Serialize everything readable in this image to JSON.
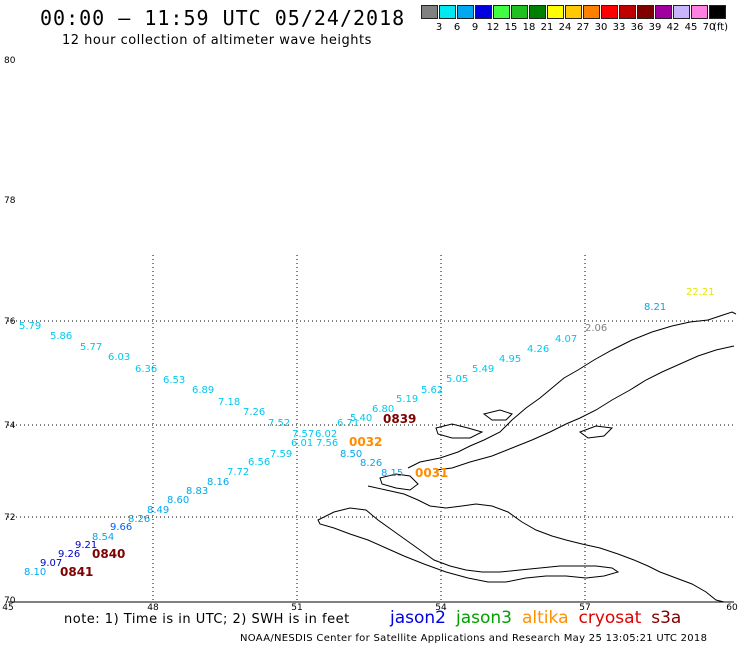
{
  "header": {
    "title": "00:00 – 11:59 UTC 05/24/2018",
    "subtitle": "12 hour collection of altimeter wave heights"
  },
  "legend": {
    "unit": "(ft)",
    "items": [
      {
        "label": "3",
        "color": "#808080"
      },
      {
        "label": "6",
        "color": "#00e8f0"
      },
      {
        "label": "9",
        "color": "#00a8f0"
      },
      {
        "label": "12",
        "color": "#0000e0"
      },
      {
        "label": "15",
        "color": "#40ff40"
      },
      {
        "label": "18",
        "color": "#20c020"
      },
      {
        "label": "21",
        "color": "#008000"
      },
      {
        "label": "24",
        "color": "#ffff00"
      },
      {
        "label": "27",
        "color": "#ffc800"
      },
      {
        "label": "30",
        "color": "#ff8000"
      },
      {
        "label": "33",
        "color": "#ff0000"
      },
      {
        "label": "36",
        "color": "#c00000"
      },
      {
        "label": "39",
        "color": "#800000"
      },
      {
        "label": "42",
        "color": "#a000a0"
      },
      {
        "label": "45",
        "color": "#c8b4ff"
      },
      {
        "label": "70",
        "color": "#ff80e0"
      },
      {
        "label": "",
        "color": "#000000"
      }
    ]
  },
  "axes": {
    "lat_labels": [
      "80",
      "78",
      "76",
      "74",
      "72",
      "70"
    ],
    "lon_labels": [
      "45",
      "48",
      "51",
      "54",
      "57",
      "60"
    ]
  },
  "swh_labels": [
    {
      "text": "5.79",
      "color": "#00c8f0"
    },
    {
      "text": "5.86",
      "color": "#00c8f0"
    },
    {
      "text": "5.77",
      "color": "#00c8f0"
    },
    {
      "text": "6.03",
      "color": "#00c8f0"
    },
    {
      "text": "6.36",
      "color": "#00c8f0"
    },
    {
      "text": "6.53",
      "color": "#00c8f0"
    },
    {
      "text": "6.89",
      "color": "#00c8f0"
    },
    {
      "text": "7.18",
      "color": "#00c8f0"
    },
    {
      "text": "7.26",
      "color": "#00c8f0"
    },
    {
      "text": "7.52",
      "color": "#00c8f0"
    },
    {
      "text": "7.57",
      "color": "#00c8f0"
    },
    {
      "text": "6.02",
      "color": "#00c8f0"
    },
    {
      "text": "6.71",
      "color": "#00c8f0"
    },
    {
      "text": "5.40",
      "color": "#00c8f0"
    },
    {
      "text": "6.80",
      "color": "#00c8f0"
    },
    {
      "text": "5.19",
      "color": "#00c8f0"
    },
    {
      "text": "5.62",
      "color": "#00c8f0"
    },
    {
      "text": "5.05",
      "color": "#00c8f0"
    },
    {
      "text": "5.49",
      "color": "#00c8f0"
    },
    {
      "text": "4.95",
      "color": "#00c8f0"
    },
    {
      "text": "4.26",
      "color": "#00c8f0"
    },
    {
      "text": "4.07",
      "color": "#00c8f0"
    },
    {
      "text": "2.06",
      "color": "#808080"
    },
    {
      "text": "8.21",
      "color": "#00a8f0"
    },
    {
      "text": "22.21",
      "color": "#e8e800"
    },
    {
      "text": "6.01",
      "color": "#00c8f0"
    },
    {
      "text": "7.56",
      "color": "#00c8f0"
    },
    {
      "text": "7.59",
      "color": "#00c8f0"
    },
    {
      "text": "6.56",
      "color": "#00c8f0"
    },
    {
      "text": "7.72",
      "color": "#00c8f0"
    },
    {
      "text": "8.16",
      "color": "#00a8f0"
    },
    {
      "text": "8.83",
      "color": "#00a8f0"
    },
    {
      "text": "8.60",
      "color": "#00a8f0"
    },
    {
      "text": "8.49",
      "color": "#00a8f0"
    },
    {
      "text": "8.26",
      "color": "#00a8f0"
    },
    {
      "text": "9.66",
      "color": "#0060f0"
    },
    {
      "text": "8.54",
      "color": "#00a8f0"
    },
    {
      "text": "9.21",
      "color": "#0000c8"
    },
    {
      "text": "9.26",
      "color": "#0000c8"
    },
    {
      "text": "9.07",
      "color": "#0000c8"
    },
    {
      "text": "8.10",
      "color": "#00a8f0"
    },
    {
      "text": "8.50",
      "color": "#00a8f0"
    },
    {
      "text": "8.26",
      "color": "#00a8f0"
    },
    {
      "text": "8.15",
      "color": "#00a8f0"
    }
  ],
  "time_labels": [
    {
      "text": "0839",
      "color": "#800000"
    },
    {
      "text": "0032",
      "color": "#ff8c00"
    },
    {
      "text": "0031",
      "color": "#ff8c00"
    },
    {
      "text": "0840",
      "color": "#800000"
    },
    {
      "text": "0841",
      "color": "#800000"
    }
  ],
  "footer": {
    "note": "note: 1) Time is in UTC; 2) SWH is in feet",
    "satellites": [
      {
        "name": "jason2",
        "color": "#0000e0"
      },
      {
        "name": "jason3",
        "color": "#00a000"
      },
      {
        "name": "altika",
        "color": "#ff9000"
      },
      {
        "name": "cryosat",
        "color": "#e00000"
      },
      {
        "name": "s3a",
        "color": "#800000"
      }
    ],
    "credit": "NOAA/NESDIS Center for Satellite Applications and Research     May 25 13:05:21 UTC 2018"
  }
}
